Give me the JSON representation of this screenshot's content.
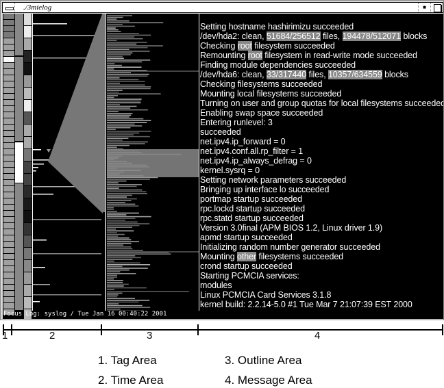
{
  "window": {
    "title": "./3mielog",
    "status": "Focus Log: syslog / Tue Jan 16 00:40:22 2001"
  },
  "messages": [
    [
      {
        "t": "Setting hostname hashirimizu succeeded"
      }
    ],
    [
      {
        "t": "/dev/hda2: clean, "
      },
      {
        "t": "51684/256512",
        "hl": true
      },
      {
        "t": " files, "
      },
      {
        "t": "194478/512071",
        "hl": true
      },
      {
        "t": " blocks"
      }
    ],
    [
      {
        "t": "Checking "
      },
      {
        "t": "root",
        "hl": true
      },
      {
        "t": " filesystem succeeded"
      }
    ],
    [
      {
        "t": "Remounting "
      },
      {
        "t": "root",
        "hl": true
      },
      {
        "t": " filesystem in read-write mode succeeded"
      }
    ],
    [
      {
        "t": "Finding module dependencies succeeded"
      }
    ],
    [
      {
        "t": "/dev/hda6: clean, "
      },
      {
        "t": "33/317440",
        "hl": true
      },
      {
        "t": " files, "
      },
      {
        "t": "10357/634559",
        "hl": true
      },
      {
        "t": " blocks"
      }
    ],
    [
      {
        "t": "Checking filesystems succeeded"
      }
    ],
    [
      {
        "t": "Mounting local filesystems succeeded"
      }
    ],
    [
      {
        "t": "Turning on user and group quotas for local filesystems succeeded"
      }
    ],
    [
      {
        "t": "Enabling swap space succeeded"
      }
    ],
    [
      {
        "t": "Entering runlevel: 3"
      }
    ],
    [
      {
        "t": "succeeded"
      }
    ],
    [
      {
        "t": "net.ipv4.ip_forward = 0"
      }
    ],
    [
      {
        "t": "net.ipv4.conf.all.rp_filter = 1"
      }
    ],
    [
      {
        "t": "net.ipv4.ip_always_defrag = 0"
      }
    ],
    [
      {
        "t": "kernel.sysrq = 0"
      }
    ],
    [
      {
        "t": "Setting network parameters succeeded"
      }
    ],
    [
      {
        "t": "Bringing up interface lo succeeded"
      }
    ],
    [
      {
        "t": "portmap startup succeeded"
      }
    ],
    [
      {
        "t": "rpc.lockd startup succeeded"
      }
    ],
    [
      {
        "t": "rpc.statd startup succeeded"
      }
    ],
    [
      {
        "t": "Version 3.0final (APM BIOS 1.2, Linux driver 1.9)"
      }
    ],
    [
      {
        "t": "apmd startup succeeded"
      }
    ],
    [
      {
        "t": "Initializing random number generator succeeded"
      }
    ],
    [
      {
        "t": "Mounting "
      },
      {
        "t": "other",
        "hl": true
      },
      {
        "t": " filesystems succeeded"
      }
    ],
    [
      {
        "t": "crond startup succeeded"
      }
    ],
    [
      {
        "t": "Starting PCMCIA services:"
      }
    ],
    [
      {
        "t": "modules"
      }
    ],
    [
      {
        "t": "Linux PCMCIA Card Services 3.1.8"
      }
    ],
    [
      {
        "t": "kernel build: 2.2.14-5.0 #1 Tue Mar 7 21:07:39 EST 2000"
      }
    ]
  ],
  "ruler": {
    "labels": [
      "1",
      "2",
      "3",
      "4"
    ]
  },
  "legend": [
    "1. Tag Area",
    "2. Time Area",
    "3. Outline Area",
    "4. Message Area"
  ],
  "colors": {
    "background": "#000000",
    "text": "#ffffff",
    "highlight": "#888888",
    "outline": "#7a7a7a"
  }
}
